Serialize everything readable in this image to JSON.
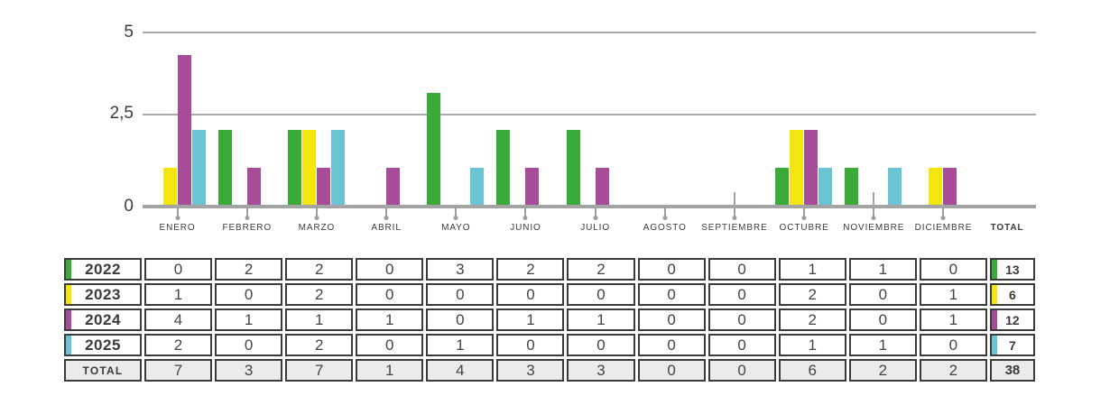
{
  "chart_data": {
    "type": "bar",
    "title": "",
    "categories": [
      "ENERO",
      "FEBRERO",
      "MARZO",
      "ABRIL",
      "MAYO",
      "JUNIO",
      "JULIO",
      "AGOSTO",
      "SEPTIEMBRE",
      "OCTUBRE",
      "NOVIEMBRE",
      "DICIEMBRE"
    ],
    "total_column_label": "TOTAL",
    "y_ticks": [
      "5",
      "2,5",
      "0"
    ],
    "ylim": [
      0,
      5
    ],
    "grid": true,
    "decimal_style": "comma",
    "series": [
      {
        "name": "2022",
        "color": "#3aaa38",
        "values": [
          0,
          2,
          2,
          0,
          3,
          2,
          2,
          0,
          0,
          1,
          1,
          0
        ],
        "total": 13
      },
      {
        "name": "2023",
        "color": "#f4e60c",
        "values": [
          1,
          0,
          2,
          0,
          0,
          0,
          0,
          0,
          0,
          2,
          0,
          1
        ],
        "total": 6
      },
      {
        "name": "2024",
        "color": "#a64c99",
        "values": [
          4,
          1,
          1,
          1,
          0,
          1,
          1,
          0,
          0,
          2,
          0,
          1
        ],
        "total": 12
      },
      {
        "name": "2025",
        "color": "#69c4d3",
        "values": [
          2,
          0,
          2,
          0,
          1,
          0,
          0,
          0,
          0,
          1,
          1,
          0
        ],
        "total": 7
      }
    ],
    "totals_row": {
      "label": "TOTAL",
      "values": [
        7,
        3,
        7,
        1,
        4,
        3,
        3,
        0,
        0,
        6,
        2,
        2
      ],
      "grand_total": 38
    },
    "tall_tick_months": [
      "SEPTIEMBRE",
      "NOVIEMBRE"
    ]
  },
  "colors": {
    "gridline": "#a9a9a9",
    "axis": "#a3a3a3",
    "tick_pin": "#9d9d9d",
    "text": "#3b3b3b",
    "table_border": "#3b3b3b",
    "totals_row_background": "#ebebeb"
  }
}
